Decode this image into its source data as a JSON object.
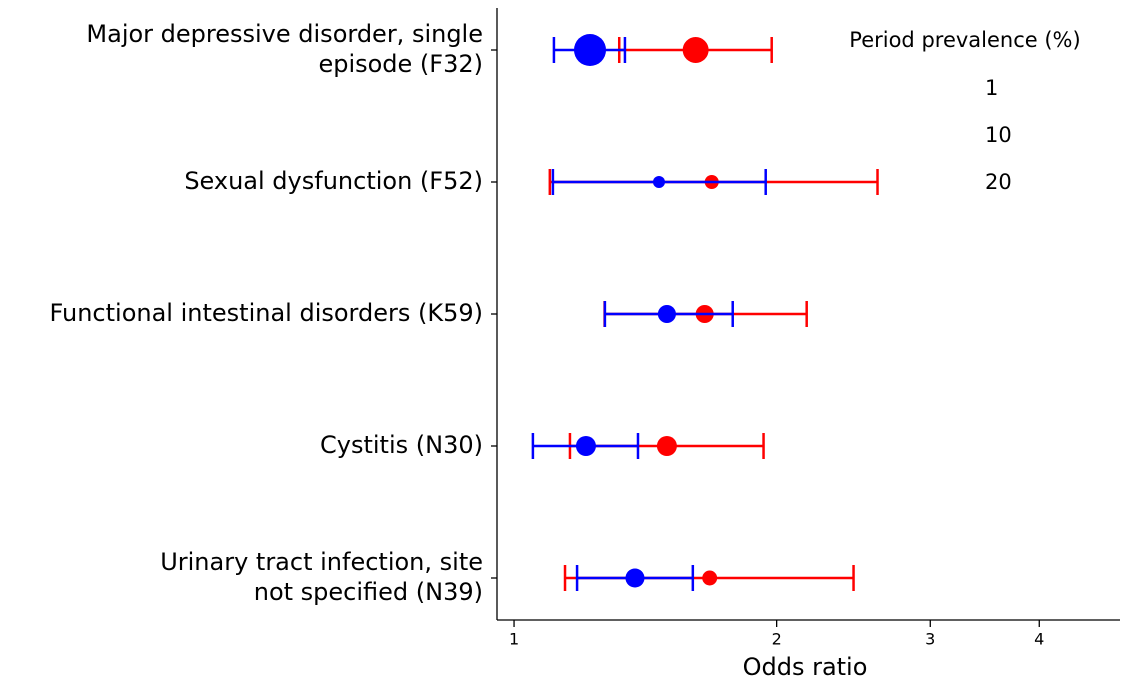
{
  "chart_data": {
    "type": "forest",
    "x_label": "Odds ratio",
    "categories": [
      [
        "Major depressive disorder, single",
        "episode (F32)"
      ],
      [
        "Sexual dysfunction (F52)"
      ],
      [
        "Functional intestinal disorders (K59)"
      ],
      [
        "Cystitis (N30) "
      ],
      [
        "Urinary tract infection, site",
        "not specified (N39)"
      ]
    ],
    "series": [
      {
        "color": "#ff0000",
        "values": [
          1.615,
          1.685,
          1.654,
          1.497,
          1.676
        ],
        "lows": [
          1.32,
          1.099,
          1.27,
          1.159,
          1.144
        ],
        "highs": [
          1.974,
          2.61,
          2.165,
          1.932,
          2.45
        ],
        "sizes": [
          13,
          3.8,
          6.3,
          7.7,
          4.3
        ]
      },
      {
        "color": "#0000ff",
        "values": [
          1.222,
          1.466,
          1.497,
          1.209,
          1.376
        ],
        "lows": [
          1.111,
          1.108,
          1.271,
          1.051,
          1.181
        ],
        "highs": [
          1.34,
          1.943,
          1.781,
          1.387,
          1.603
        ],
        "sizes": [
          19.8,
          2.8,
          6.3,
          7.7,
          7
        ]
      }
    ],
    "xscale": "log",
    "xlim": [
      0.956,
      4.95
    ],
    "xticks": [
      1,
      2,
      3,
      4
    ],
    "legend": {
      "title": "Period prevalence (%)",
      "sizes": [
        1,
        10,
        20
      ]
    }
  }
}
